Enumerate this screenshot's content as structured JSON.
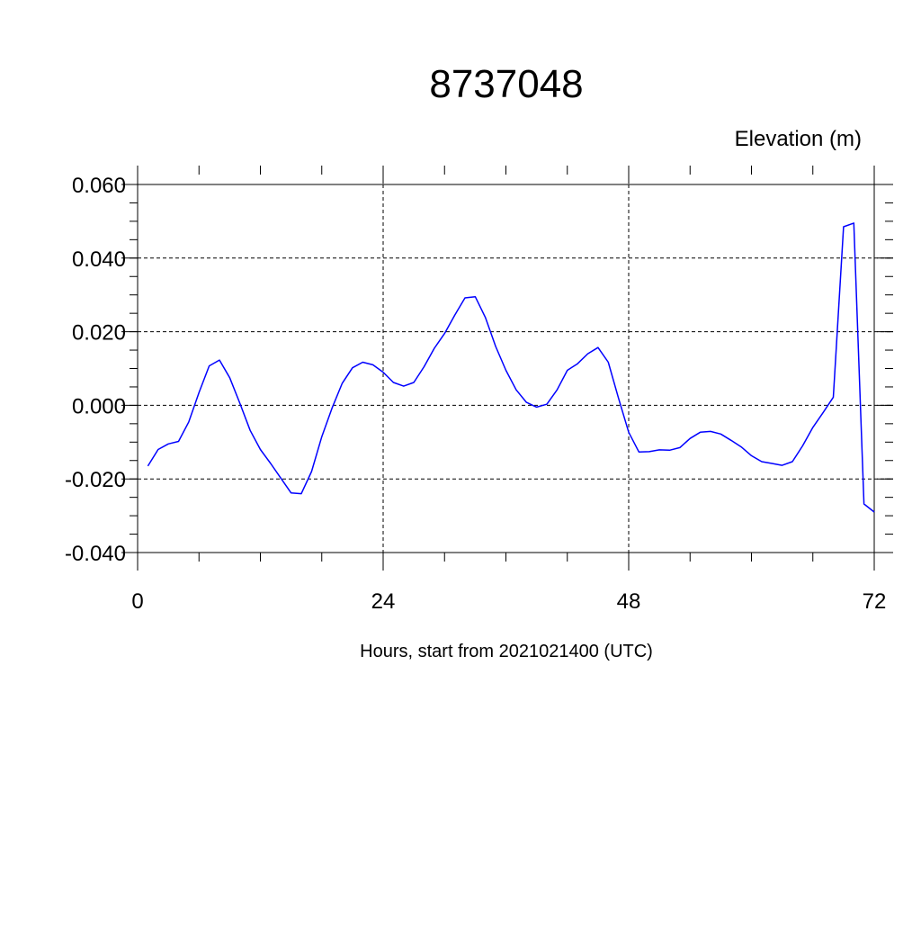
{
  "chart_data": {
    "type": "line",
    "title": "8737048",
    "units_label": "Elevation (m)",
    "xlabel": "Hours, start from 2021021400 (UTC)",
    "ylabel": "",
    "xlim": [
      0,
      72
    ],
    "ylim": [
      -0.04,
      0.06
    ],
    "x_ticks": [
      0,
      24,
      48,
      72
    ],
    "x_tick_labels": [
      "0",
      "24",
      "48",
      "72"
    ],
    "y_ticks": [
      -0.04,
      -0.02,
      0.0,
      0.02,
      0.04,
      0.06
    ],
    "y_tick_labels": [
      "-0.040",
      "-0.020",
      "0.000",
      "0.020",
      "0.040",
      "0.060"
    ],
    "grid": true,
    "grid_style": "dashed",
    "series": [
      {
        "color": "#0000ff",
        "x": [
          1,
          2,
          3,
          4,
          5,
          6,
          7,
          8,
          9,
          10,
          11,
          12,
          13,
          14,
          15,
          16,
          17,
          18,
          19,
          20,
          21,
          22,
          23,
          24,
          25,
          26,
          27,
          28,
          29,
          30,
          31,
          32,
          33,
          34,
          35,
          36,
          37,
          38,
          39,
          40,
          41,
          42,
          43,
          44,
          45,
          46,
          47,
          48,
          49,
          50,
          51,
          52,
          53,
          54,
          55,
          56,
          57,
          58,
          59,
          60,
          61,
          62,
          63,
          64,
          65,
          66,
          67,
          68,
          69,
          70,
          71,
          72
        ],
        "y": [
          -0.0165,
          -0.012,
          -0.0105,
          -0.0098,
          -0.0045,
          0.0035,
          0.0107,
          0.0123,
          0.0075,
          0.0005,
          -0.0068,
          -0.012,
          -0.0158,
          -0.0198,
          -0.0238,
          -0.024,
          -0.018,
          -0.0085,
          -0.0008,
          0.006,
          0.0102,
          0.0117,
          0.011,
          0.009,
          0.0062,
          0.0052,
          0.0062,
          0.0105,
          0.0155,
          0.0195,
          0.0245,
          0.0292,
          0.0295,
          0.0238,
          0.016,
          0.0095,
          0.0042,
          0.0008,
          -0.0005,
          0.0003,
          0.0042,
          0.0095,
          0.0113,
          0.014,
          0.0157,
          0.0117,
          0.002,
          -0.0073,
          -0.0127,
          -0.0126,
          -0.0121,
          -0.0122,
          -0.0115,
          -0.009,
          -0.0073,
          -0.0071,
          -0.0078,
          -0.0095,
          -0.0113,
          -0.0137,
          -0.0153,
          -0.0158,
          -0.0163,
          -0.0153,
          -0.011,
          -0.006,
          -0.002,
          0.0022,
          0.0485,
          0.0495,
          -0.0268,
          -0.029
        ]
      }
    ]
  }
}
